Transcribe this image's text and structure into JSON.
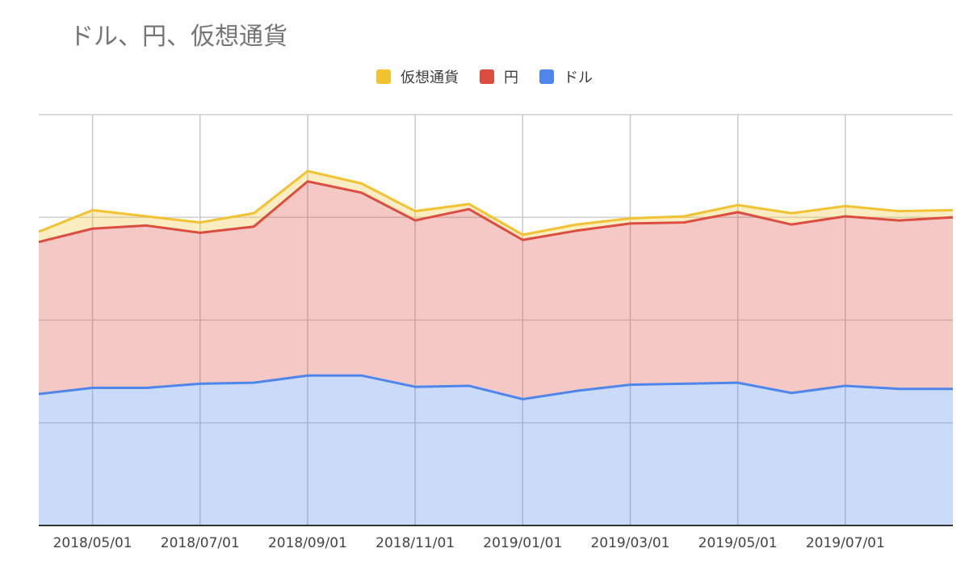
{
  "chart_data": {
    "type": "area",
    "stacked": true,
    "title": "ドル、円、仮想通貨",
    "xlabel": "",
    "ylabel": "",
    "grid": true,
    "legend_position": "top",
    "x": [
      "2018/04/01",
      "2018/05/01",
      "2018/06/01",
      "2018/07/01",
      "2018/08/01",
      "2018/09/01",
      "2018/10/01",
      "2018/11/01",
      "2018/12/01",
      "2019/01/01",
      "2019/02/01",
      "2019/03/01",
      "2019/04/01",
      "2019/05/01",
      "2019/06/01",
      "2019/07/01",
      "2019/08/01",
      "2019/09/01"
    ],
    "x_tick_labels": [
      "2018/05/01",
      "2018/07/01",
      "2018/09/01",
      "2018/11/01",
      "2019/01/01",
      "2019/03/01",
      "2019/05/01",
      "2019/07/01"
    ],
    "ylim": [
      0,
      4
    ],
    "series": [
      {
        "name": "ドル",
        "color": "#4f86ec",
        "values": [
          1.28,
          1.34,
          1.34,
          1.38,
          1.39,
          1.46,
          1.46,
          1.35,
          1.36,
          1.23,
          1.31,
          1.37,
          1.38,
          1.39,
          1.29,
          1.36,
          1.33,
          1.33
        ]
      },
      {
        "name": "円",
        "color": "#dc4c3f",
        "values": [
          1.48,
          1.55,
          1.58,
          1.47,
          1.52,
          1.89,
          1.78,
          1.62,
          1.72,
          1.55,
          1.56,
          1.57,
          1.57,
          1.66,
          1.64,
          1.65,
          1.64,
          1.67
        ]
      },
      {
        "name": "仮想通貨",
        "color": "#f1c232",
        "values": [
          0.1,
          0.18,
          0.09,
          0.1,
          0.13,
          0.1,
          0.09,
          0.09,
          0.05,
          0.05,
          0.06,
          0.05,
          0.06,
          0.07,
          0.11,
          0.1,
          0.09,
          0.07
        ]
      }
    ],
    "legend_order": [
      "仮想通貨",
      "円",
      "ドル"
    ]
  }
}
